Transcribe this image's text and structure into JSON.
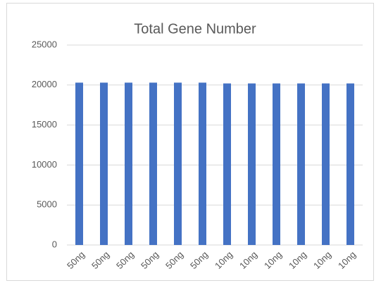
{
  "chart_data": {
    "type": "bar",
    "title": "Total Gene Number",
    "categories": [
      "50ng",
      "50ng",
      "50ng",
      "50ng",
      "50ng",
      "50ng",
      "10ng",
      "10ng",
      "10ng",
      "10ng",
      "10ng",
      "10ng"
    ],
    "values": [
      20300,
      20300,
      20300,
      20300,
      20300,
      20300,
      20200,
      20200,
      20200,
      20200,
      20200,
      20200
    ],
    "color": "#4472c4",
    "ylim": [
      0,
      25000
    ],
    "yticks": [
      0,
      5000,
      10000,
      15000,
      20000,
      25000
    ],
    "grid": true
  }
}
